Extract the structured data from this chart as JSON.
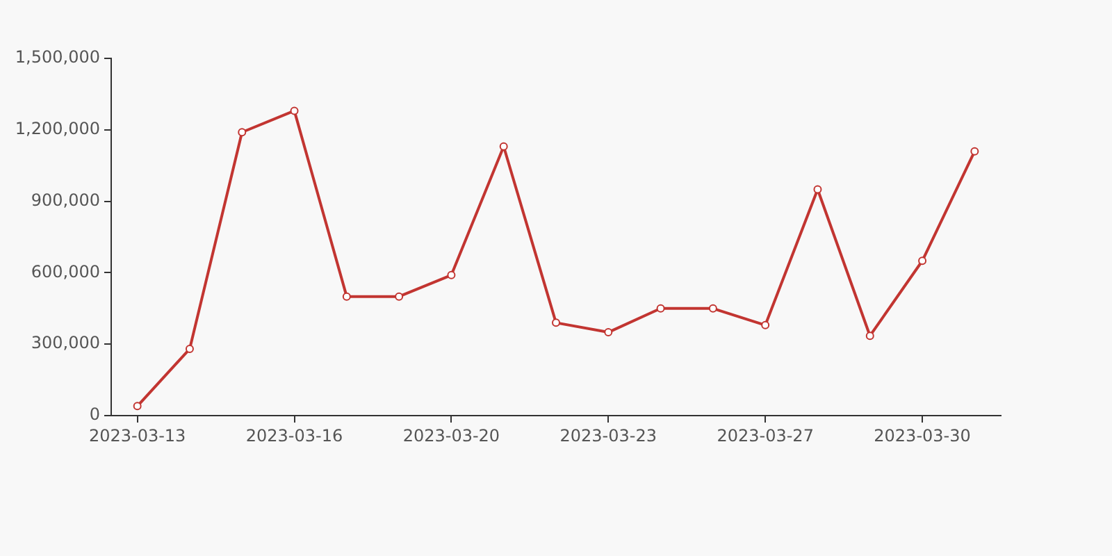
{
  "chart_data": {
    "type": "line",
    "categories": [
      "2023-03-13",
      null,
      null,
      "2023-03-16",
      null,
      null,
      "2023-03-20",
      null,
      null,
      "2023-03-23",
      null,
      null,
      "2023-03-27",
      null,
      null,
      "2023-03-30",
      null
    ],
    "series": [
      {
        "color": "#c23531",
        "values": [
          40000,
          280000,
          1190000,
          1280000,
          500000,
          500000,
          590000,
          1130000,
          390000,
          350000,
          450000,
          450000,
          380000,
          950000,
          335000,
          650000,
          1110000
        ]
      }
    ],
    "ylim": [
      0,
      1500000
    ],
    "yticks": [
      0,
      {
        "value": 300000,
        "label": "300,000"
      },
      {
        "value": 600000,
        "label": "600,000"
      },
      {
        "value": 900000,
        "label": "900,000"
      },
      {
        "value": 1200000,
        "label": "1,200,000"
      },
      {
        "value": 1500000,
        "label": "1,500,000"
      }
    ],
    "grid": false,
    "legend": false,
    "marker": "circle",
    "line_style": "solid"
  }
}
